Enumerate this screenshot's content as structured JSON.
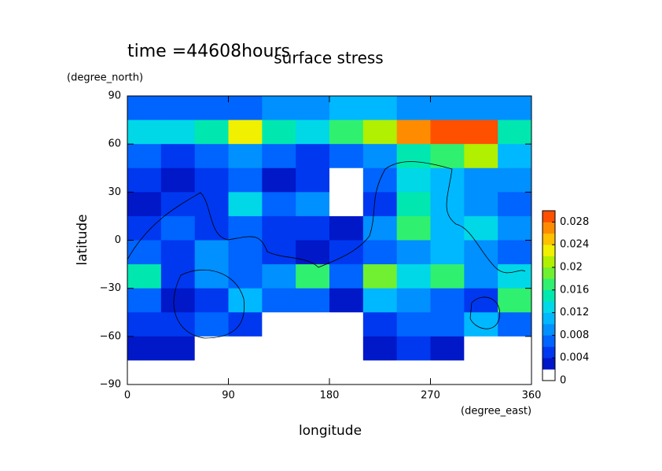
{
  "chart_data": {
    "type": "heatmap",
    "title": "surface stress",
    "subtitle": "time =44608hours",
    "x_label": "longitude",
    "x_unit": "(degree_east)",
    "y_label": "latitude",
    "y_unit": "(degree_north)",
    "x": [
      15,
      45,
      75,
      105,
      135,
      165,
      195,
      225,
      255,
      285,
      315,
      345
    ],
    "y": [
      82.5,
      67.5,
      52.5,
      37.5,
      22.5,
      7.5,
      -7.5,
      -22.5,
      -37.5,
      -52.5,
      -67.5,
      -82.5
    ],
    "z": [
      [
        0.006,
        0.006,
        0.007,
        0.007,
        0.008,
        0.008,
        0.01,
        0.01,
        0.009,
        0.008,
        0.008,
        0.008
      ],
      [
        0.012,
        0.012,
        0.014,
        0.022,
        0.014,
        0.012,
        0.016,
        0.02,
        0.026,
        0.03,
        0.03,
        0.014
      ],
      [
        0.006,
        0.004,
        0.006,
        0.008,
        0.006,
        0.004,
        0.006,
        0.008,
        0.014,
        0.016,
        0.02,
        0.01
      ],
      [
        0.004,
        0.002,
        0.004,
        0.006,
        0.002,
        0.004,
        0.001,
        0.006,
        0.012,
        0.01,
        0.008,
        0.008
      ],
      [
        0.003,
        0.005,
        0.004,
        0.012,
        0.006,
        0.008,
        0.001,
        0.004,
        0.014,
        0.01,
        0.008,
        0.006
      ],
      [
        0.004,
        0.006,
        0.004,
        0.006,
        0.004,
        0.004,
        0.002,
        0.008,
        0.016,
        0.01,
        0.012,
        0.008
      ],
      [
        0.006,
        0.004,
        0.008,
        0.006,
        0.004,
        0.002,
        0.004,
        0.006,
        0.008,
        0.01,
        0.008,
        0.006
      ],
      [
        0.014,
        0.004,
        0.008,
        0.006,
        0.008,
        0.016,
        0.006,
        0.018,
        0.012,
        0.016,
        0.008,
        0.012
      ],
      [
        0.006,
        0.002,
        0.004,
        0.01,
        0.006,
        0.006,
        0.002,
        0.01,
        0.008,
        0.006,
        0.004,
        0.016
      ],
      [
        0.004,
        0.004,
        0.006,
        0.004,
        0,
        0,
        0,
        0.004,
        0.006,
        0.006,
        0.01,
        0.006
      ],
      [
        0.002,
        0.002,
        0,
        0,
        0,
        0,
        0,
        0.002,
        0.004,
        0.002,
        0,
        0
      ],
      [
        0,
        0,
        0,
        0,
        0,
        0,
        0,
        0,
        0,
        0,
        0,
        0
      ]
    ],
    "xlim": [
      0,
      360
    ],
    "xticks": [
      0,
      90,
      180,
      270,
      360
    ],
    "ylim": [
      -90,
      90
    ],
    "yticks": [
      {
        "value": -90,
        "label": "−90"
      },
      {
        "value": -60,
        "label": "−60"
      },
      {
        "value": -30,
        "label": "−30"
      },
      0,
      30,
      60,
      90
    ],
    "clim": [
      0,
      0.03
    ],
    "cticks": [
      0,
      0.004,
      0.008,
      0.012,
      0.016,
      0.02,
      0.024,
      0.028
    ],
    "colors": [
      "#ffffff",
      "#0018c8",
      "#0038f0",
      "#0064ff",
      "#0090ff",
      "#00b8ff",
      "#00d8e8",
      "#00e8b0",
      "#30f070",
      "#70f030",
      "#b0f000",
      "#f0f000",
      "#ffc000",
      "#ff8c00",
      "#ff5000"
    ]
  }
}
